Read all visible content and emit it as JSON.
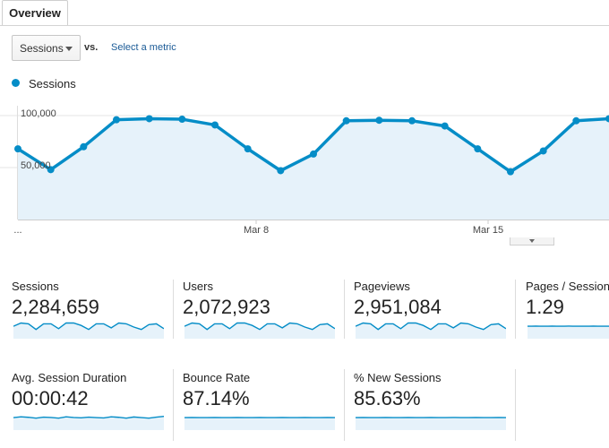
{
  "tabs": {
    "overview_label": "Overview"
  },
  "controls": {
    "metric_value": "Sessions",
    "vs_label": "vs.",
    "select_metric_link": "Select a metric"
  },
  "legend": {
    "series_label": "Sessions",
    "series_color": "#058dc7"
  },
  "chart_data": {
    "type": "line",
    "series": [
      {
        "name": "Sessions",
        "values": [
          68000,
          48000,
          70000,
          96000,
          97000,
          96500,
          91000,
          68000,
          47000,
          63000,
          95000,
          95500,
          95000,
          90000,
          68000,
          46000,
          66000,
          95000,
          97000
        ]
      }
    ],
    "x_labels": [
      "...",
      "Mar 8",
      "Mar 15"
    ],
    "y_ticks": [
      "100,000",
      "50,000"
    ],
    "ylim": [
      0,
      125000
    ],
    "fill": "area",
    "grid": true
  },
  "metrics": [
    {
      "label": "Sessions",
      "value": "2,284,659",
      "spark": [
        0.55,
        0.75,
        0.7,
        0.35,
        0.7,
        0.7,
        0.4,
        0.75,
        0.75,
        0.6,
        0.35,
        0.7,
        0.7,
        0.45,
        0.75,
        0.7,
        0.5,
        0.35,
        0.65,
        0.7,
        0.4
      ]
    },
    {
      "label": "Users",
      "value": "2,072,923",
      "spark": [
        0.55,
        0.75,
        0.7,
        0.35,
        0.7,
        0.7,
        0.4,
        0.75,
        0.75,
        0.6,
        0.35,
        0.7,
        0.7,
        0.45,
        0.75,
        0.7,
        0.5,
        0.35,
        0.65,
        0.7,
        0.4
      ]
    },
    {
      "label": "Pageviews",
      "value": "2,951,084",
      "spark": [
        0.55,
        0.75,
        0.7,
        0.35,
        0.7,
        0.7,
        0.4,
        0.75,
        0.75,
        0.6,
        0.35,
        0.7,
        0.7,
        0.45,
        0.75,
        0.7,
        0.5,
        0.35,
        0.65,
        0.7,
        0.4
      ]
    },
    {
      "label": "Pages / Session",
      "value": "1.29",
      "spark": [
        0.55,
        0.55,
        0.56,
        0.55,
        0.55,
        0.55,
        0.56,
        0.55,
        0.55,
        0.55,
        0.56,
        0.55,
        0.55,
        0.55,
        0.55,
        0.55,
        0.56,
        0.55,
        0.55,
        0.55,
        0.55
      ]
    },
    {
      "label": "Avg. Session Duration",
      "value": "00:00:42",
      "spark": [
        0.55,
        0.6,
        0.57,
        0.52,
        0.58,
        0.56,
        0.52,
        0.6,
        0.56,
        0.54,
        0.58,
        0.55,
        0.53,
        0.6,
        0.57,
        0.52,
        0.59,
        0.55,
        0.52,
        0.58,
        0.63
      ]
    },
    {
      "label": "Bounce Rate",
      "value": "87.14%",
      "spark": [
        0.55,
        0.56,
        0.55,
        0.55,
        0.56,
        0.55,
        0.55,
        0.56,
        0.55,
        0.55,
        0.56,
        0.55,
        0.55,
        0.56,
        0.55,
        0.55,
        0.56,
        0.55,
        0.55,
        0.56,
        0.55
      ]
    },
    {
      "label": "% New Sessions",
      "value": "85.63%",
      "spark": [
        0.55,
        0.56,
        0.55,
        0.55,
        0.56,
        0.55,
        0.55,
        0.56,
        0.55,
        0.55,
        0.56,
        0.55,
        0.55,
        0.56,
        0.55,
        0.55,
        0.56,
        0.55,
        0.55,
        0.56,
        0.55
      ]
    }
  ]
}
